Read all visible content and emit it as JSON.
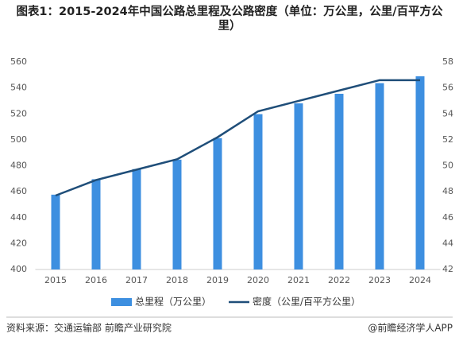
{
  "chart_data": {
    "type": "bar",
    "title": "图表1：2015-2024年中国公路总里程及公路密度（单位：万公里，公里/百平方公里）",
    "categories": [
      "2015",
      "2016",
      "2017",
      "2018",
      "2019",
      "2020",
      "2021",
      "2022",
      "2023",
      "2024"
    ],
    "series": [
      {
        "name": "总里程（万公里）",
        "type": "bar",
        "color": "#3d8fe0",
        "values": [
          457.7,
          469.6,
          477.4,
          484.7,
          501.3,
          519.8,
          528.1,
          535.5,
          543.7,
          549.0
        ]
      },
      {
        "name": "密度（公里/百平方公里）",
        "type": "line",
        "axis": "y2",
        "color": "#1f4e79",
        "values": [
          47.7,
          48.9,
          49.7,
          50.5,
          52.2,
          54.2,
          55.0,
          55.8,
          56.6,
          56.6
        ]
      }
    ],
    "ylim": [
      400,
      560
    ],
    "yticks": [
      400,
      420,
      440,
      460,
      480,
      500,
      520,
      540,
      560
    ],
    "y2lim": [
      42,
      58
    ],
    "y2ticks": [
      42,
      44,
      46,
      48,
      50,
      52,
      54,
      56,
      58
    ],
    "grid": false,
    "source": "资料来源：交通运输部  前瞻产业研究院",
    "credit": "@前瞻经济学人APP"
  }
}
